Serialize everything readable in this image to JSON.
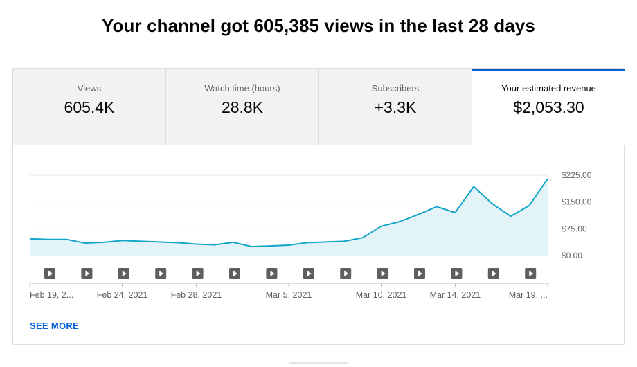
{
  "headline": "Your channel got 605,385 views in the last 28 days",
  "tabs": [
    {
      "label": "Views",
      "value": "605.4K",
      "active": false
    },
    {
      "label": "Watch time (hours)",
      "value": "28.8K",
      "active": false
    },
    {
      "label": "Subscribers",
      "value": "+3.3K",
      "active": false
    },
    {
      "label": "Your estimated revenue",
      "value": "$2,053.30",
      "active": true
    }
  ],
  "see_more": "SEE MORE",
  "colors": {
    "accent": "#065fd4",
    "line": "#12a4c9",
    "fill": "#e3f4f9"
  },
  "icons": {
    "video_marker": "play-icon"
  },
  "chart_data": {
    "type": "area",
    "y_ticks": [
      "$0.00",
      "$75.00",
      "$150.00",
      "$225.00"
    ],
    "ylim": [
      0,
      225
    ],
    "x_tick_labels": [
      "Feb 19, 2...",
      "Feb 24, 2021",
      "Feb 28, 2021",
      "Mar 5, 2021",
      "Mar 10, 2021",
      "Mar 14, 2021",
      "Mar 19, ..."
    ],
    "grid": true,
    "series": [
      {
        "values": [
          47,
          45,
          45,
          35,
          37,
          42,
          40,
          38,
          36,
          32,
          30,
          37,
          25,
          27,
          29,
          36,
          38,
          40,
          50,
          82,
          95,
          115,
          137,
          120,
          193,
          145,
          110,
          140,
          215
        ]
      }
    ],
    "video_markers": 14
  }
}
